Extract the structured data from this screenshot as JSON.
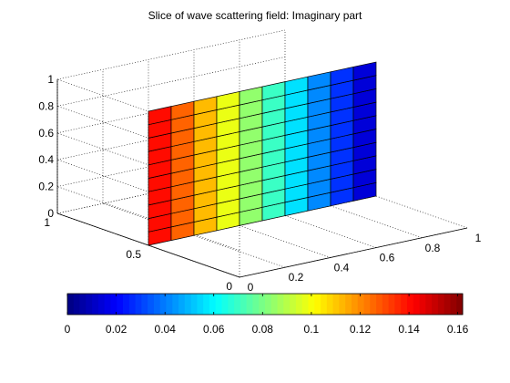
{
  "chart_data": {
    "type": "surface-slice",
    "title": "Slice of wave scattering field: Imaginary part",
    "xlabel": "",
    "ylabel": "",
    "zlabel": "",
    "colormap": "jet",
    "x_axis": {
      "range": [
        0,
        1
      ],
      "ticks": [
        0,
        0.2,
        0.4,
        0.6,
        0.8,
        1
      ],
      "tick_labels": [
        "0",
        "0.2",
        "0.4",
        "0.6",
        "0.8",
        "1"
      ]
    },
    "y_axis": {
      "range": [
        0,
        1
      ],
      "ticks": [
        0,
        0.5,
        1
      ],
      "tick_labels": [
        "0",
        "0.5",
        "1"
      ]
    },
    "z_axis": {
      "range": [
        0,
        1
      ],
      "ticks": [
        0,
        0.2,
        0.4,
        0.6,
        0.8,
        1
      ],
      "tick_labels": [
        "0",
        "0.2",
        "0.4",
        "0.6",
        "0.8",
        "1"
      ]
    },
    "slice": {
      "plane": "y = 0.5",
      "x_grid": [
        0,
        0.1,
        0.2,
        0.3,
        0.4,
        0.5,
        0.6,
        0.7,
        0.8,
        0.9,
        1.0
      ],
      "z_grid": [
        0,
        0.1,
        0.2,
        0.3,
        0.4,
        0.5,
        0.6,
        0.7,
        0.8,
        0.9,
        1.0
      ],
      "column_values": [
        0.14,
        0.126,
        0.112,
        0.098,
        0.084,
        0.07,
        0.056,
        0.042,
        0.028,
        0.014
      ]
    },
    "colorbar": {
      "range": [
        0,
        0.162
      ],
      "ticks": [
        0,
        0.02,
        0.04,
        0.06,
        0.08,
        0.1,
        0.12,
        0.14,
        0.16
      ],
      "tick_labels": [
        "0",
        "0.02",
        "0.04",
        "0.06",
        "0.08",
        "0.1",
        "0.12",
        "0.14",
        "0.16"
      ],
      "orientation": "horizontal",
      "placement": "bottom"
    },
    "grid": true
  }
}
